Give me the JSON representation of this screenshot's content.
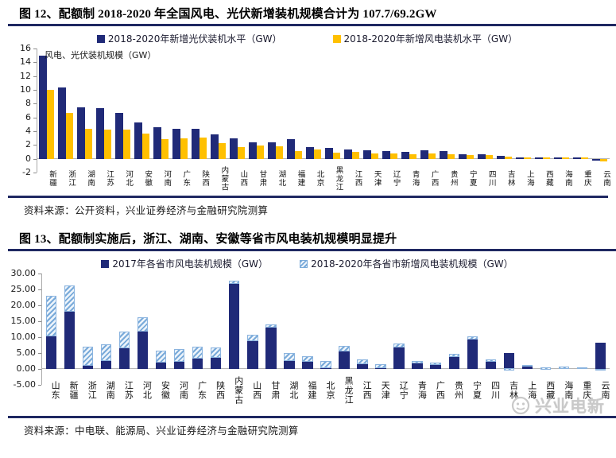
{
  "figure12": {
    "title": "图 12、配额制 2018-2020 年全国风电、光伏新增装机规模合计为 107.7/69.2GW",
    "source": "资料来源：公开资料，兴业证券经济与金融研究院测算"
  },
  "figure13": {
    "title": "图 13、配额制实施后，浙江、湖南、安徽等省市风电装机规模明显提升",
    "source": "资料来源：中电联、能源局、兴业证券经济与金融研究院测算",
    "watermark": "兴业电新"
  },
  "colors": {
    "navy_bar": "#202A78",
    "gold_bar": "#FFC000",
    "hatch_blue": "#79AAD9",
    "rule_navy": "#1F2862"
  },
  "chart_data": [
    {
      "id": "fig12",
      "type": "bar",
      "variant": "grouped",
      "title": "配额制 2018-2020 年全国风电、光伏新增装机规模合计为 107.7/69.2GW",
      "annotation": "风电、光伏装机规模（GW）",
      "ylim": [
        -2,
        16
      ],
      "yticks": [
        "16",
        "14",
        "12",
        "10",
        "8",
        "6",
        "4",
        "2",
        "0",
        "-2"
      ],
      "grid": false,
      "legend_position": "top-center",
      "categories": [
        "新疆",
        "浙江",
        "湖南",
        "江苏",
        "河北",
        "安徽",
        "河南",
        "广东",
        "陕西",
        "内蒙古",
        "山西",
        "甘肃",
        "湖北",
        "福建",
        "北京",
        "黑龙江",
        "江西",
        "天津",
        "辽宁",
        "青海",
        "广西",
        "贵州",
        "宁夏",
        "四川",
        "吉林",
        "上海",
        "西藏",
        "海南",
        "重庆",
        "云南"
      ],
      "series": [
        {
          "name": "2018-2020年新增光伏装机水平（GW）",
          "color": "#202A78",
          "pattern": "solid",
          "values": [
            15.0,
            10.3,
            7.5,
            7.3,
            6.7,
            5.3,
            4.6,
            4.4,
            4.3,
            3.5,
            3.0,
            2.4,
            2.4,
            2.8,
            1.7,
            1.6,
            1.3,
            1.2,
            1.1,
            1.0,
            1.25,
            1.15,
            0.7,
            0.65,
            0.45,
            0.2,
            0.15,
            0.12,
            0.1,
            -0.25
          ]
        },
        {
          "name": "2018-2020年新增风电装机水平（GW）",
          "color": "#FFC000",
          "pattern": "solid",
          "values": [
            10.0,
            6.6,
            4.4,
            4.2,
            4.2,
            3.6,
            2.85,
            3.0,
            3.1,
            2.3,
            1.7,
            1.9,
            1.8,
            1.1,
            1.3,
            0.9,
            1.0,
            0.8,
            0.75,
            0.7,
            0.75,
            0.7,
            0.55,
            0.5,
            0.3,
            0.25,
            0.1,
            0.08,
            0.05,
            -0.35
          ]
        }
      ]
    },
    {
      "id": "fig13",
      "type": "bar",
      "variant": "stacked",
      "title": "配额制实施后，浙江、湖南、安徽等省市风电装机规模明显提升",
      "annotation": "",
      "ylim": [
        -5,
        30
      ],
      "yticks": [
        "30.00",
        "25.00",
        "20.00",
        "15.00",
        "10.00",
        "5.00",
        "0.00",
        "-5.00"
      ],
      "grid": false,
      "legend_position": "top-center",
      "categories": [
        "山东",
        "新疆",
        "浙江",
        "湖南",
        "江苏",
        "河北",
        "安徽",
        "河南",
        "广东",
        "陕西",
        "内蒙古",
        "山西",
        "甘肃",
        "湖北",
        "福建",
        "北京",
        "黑龙江",
        "江西",
        "天津",
        "辽宁",
        "青海",
        "广西",
        "贵州",
        "宁夏",
        "四川",
        "吉林",
        "上海",
        "西藏",
        "海南",
        "重庆",
        "云南"
      ],
      "series": [
        {
          "name": "2017年各省市风电装机规模（GW）",
          "color": "#202A78",
          "pattern": "solid",
          "values": [
            10.4,
            18.0,
            1.1,
            2.6,
            6.6,
            11.7,
            2.0,
            2.4,
            3.3,
            3.5,
            26.8,
            8.8,
            13.0,
            2.5,
            2.4,
            0.2,
            5.6,
            1.6,
            0.3,
            6.9,
            1.7,
            1.4,
            3.7,
            9.3,
            2.5,
            5.0,
            0.9,
            0.05,
            0.3,
            0.05,
            8.3
          ]
        },
        {
          "name": "2018-2020年各省市新增风电装机规模（GW）",
          "color": "#79AAD9",
          "pattern": "diagonal-hatch",
          "values": [
            12.6,
            8.2,
            5.9,
            5.2,
            5.1,
            4.6,
            3.7,
            3.9,
            3.7,
            3.3,
            0.9,
            2.0,
            1.0,
            2.5,
            1.6,
            2.4,
            1.7,
            1.5,
            1.3,
            1.2,
            0.9,
            0.7,
            1.1,
            0.9,
            0.3,
            -0.3,
            0.3,
            0.15,
            0.1,
            0.4,
            -0.4
          ]
        }
      ]
    }
  ]
}
